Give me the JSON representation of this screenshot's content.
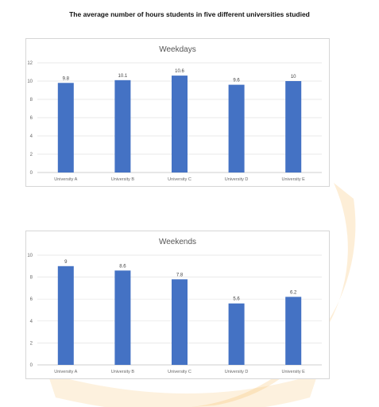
{
  "page_title": "The average number of hours students in five different universities studied",
  "colors": {
    "bar": "#4472c4",
    "grid": "#e3e3e3",
    "watermark": "#e0302a"
  },
  "chart_data": [
    {
      "type": "bar",
      "title": "Weekdays",
      "categories": [
        "University A",
        "University B",
        "University C",
        "University D",
        "University E"
      ],
      "values": [
        9.8,
        10.1,
        10.6,
        9.6,
        10
      ],
      "value_labels": [
        "9.8",
        "10.1",
        "10.6",
        "9.6",
        "10"
      ],
      "ylim": [
        0,
        12
      ],
      "yticks": [
        0,
        2,
        4,
        6,
        8,
        10,
        12
      ],
      "grid": true
    },
    {
      "type": "bar",
      "title": "Weekends",
      "categories": [
        "University A",
        "University B",
        "University C",
        "University D",
        "University E"
      ],
      "values": [
        9,
        8.6,
        7.8,
        5.6,
        6.2
      ],
      "value_labels": [
        "9",
        "8.6",
        "7.8",
        "5.6",
        "6.2"
      ],
      "ylim": [
        0,
        10
      ],
      "yticks": [
        0,
        2,
        4,
        6,
        8,
        10
      ],
      "grid": true
    }
  ]
}
